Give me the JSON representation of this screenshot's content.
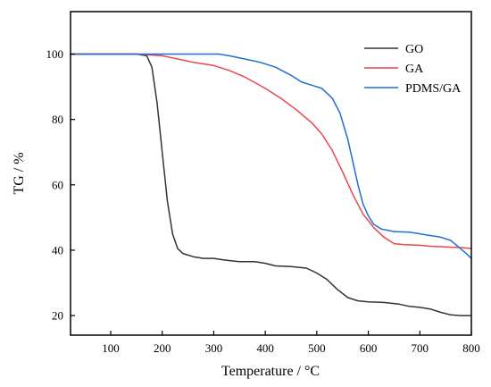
{
  "chart_data": {
    "type": "line",
    "title": "",
    "xlabel": "Temperature / °C",
    "ylabel": "TG / %",
    "xlim": [
      22,
      800
    ],
    "ylim": [
      14,
      113
    ],
    "xticks": [
      100,
      200,
      300,
      400,
      500,
      600,
      700,
      800
    ],
    "yticks": [
      20,
      40,
      60,
      80,
      100
    ],
    "grid": false,
    "legend_position": "top-right",
    "series": [
      {
        "name": "GO",
        "color": "#333333",
        "points": [
          [
            22,
            100
          ],
          [
            100,
            100
          ],
          [
            150,
            100
          ],
          [
            170,
            99.5
          ],
          [
            180,
            96
          ],
          [
            190,
            85
          ],
          [
            200,
            70
          ],
          [
            210,
            55
          ],
          [
            220,
            45
          ],
          [
            230,
            40.5
          ],
          [
            240,
            39
          ],
          [
            260,
            38
          ],
          [
            280,
            37.5
          ],
          [
            300,
            37.5
          ],
          [
            320,
            37
          ],
          [
            350,
            36.5
          ],
          [
            380,
            36.5
          ],
          [
            400,
            36
          ],
          [
            420,
            35.2
          ],
          [
            450,
            35
          ],
          [
            480,
            34.5
          ],
          [
            500,
            33
          ],
          [
            520,
            31
          ],
          [
            540,
            28
          ],
          [
            560,
            25.5
          ],
          [
            580,
            24.5
          ],
          [
            600,
            24.2
          ],
          [
            630,
            24
          ],
          [
            660,
            23.5
          ],
          [
            680,
            22.8
          ],
          [
            700,
            22.5
          ],
          [
            720,
            22
          ],
          [
            740,
            21
          ],
          [
            760,
            20.2
          ],
          [
            780,
            20
          ],
          [
            800,
            20
          ]
        ]
      },
      {
        "name": "GA",
        "color": "#e8474c",
        "points": [
          [
            22,
            100
          ],
          [
            100,
            100
          ],
          [
            150,
            100
          ],
          [
            200,
            99.5
          ],
          [
            230,
            98.5
          ],
          [
            260,
            97.5
          ],
          [
            300,
            96.5
          ],
          [
            330,
            95
          ],
          [
            360,
            93
          ],
          [
            400,
            89.5
          ],
          [
            430,
            86.5
          ],
          [
            460,
            83
          ],
          [
            490,
            79
          ],
          [
            510,
            75.5
          ],
          [
            530,
            70.5
          ],
          [
            550,
            64
          ],
          [
            570,
            57
          ],
          [
            590,
            51
          ],
          [
            610,
            47
          ],
          [
            630,
            44
          ],
          [
            650,
            42
          ],
          [
            670,
            41.7
          ],
          [
            700,
            41.5
          ],
          [
            720,
            41.2
          ],
          [
            750,
            41
          ],
          [
            780,
            40.8
          ],
          [
            800,
            40.5
          ]
        ]
      },
      {
        "name": "PDMS/GA",
        "color": "#1f6fd1",
        "points": [
          [
            22,
            100
          ],
          [
            150,
            100
          ],
          [
            250,
            100
          ],
          [
            310,
            100
          ],
          [
            330,
            99.5
          ],
          [
            360,
            98.5
          ],
          [
            390,
            97.5
          ],
          [
            420,
            96
          ],
          [
            450,
            93.5
          ],
          [
            470,
            91.5
          ],
          [
            490,
            90.5
          ],
          [
            510,
            89.5
          ],
          [
            530,
            86.5
          ],
          [
            545,
            82
          ],
          [
            560,
            74
          ],
          [
            570,
            67
          ],
          [
            580,
            60
          ],
          [
            590,
            54
          ],
          [
            600,
            50.5
          ],
          [
            610,
            48
          ],
          [
            625,
            46.5
          ],
          [
            650,
            45.7
          ],
          [
            680,
            45.5
          ],
          [
            700,
            45
          ],
          [
            720,
            44.5
          ],
          [
            740,
            44
          ],
          [
            760,
            43
          ],
          [
            775,
            41
          ],
          [
            790,
            39
          ],
          [
            800,
            37.5
          ]
        ]
      }
    ]
  }
}
